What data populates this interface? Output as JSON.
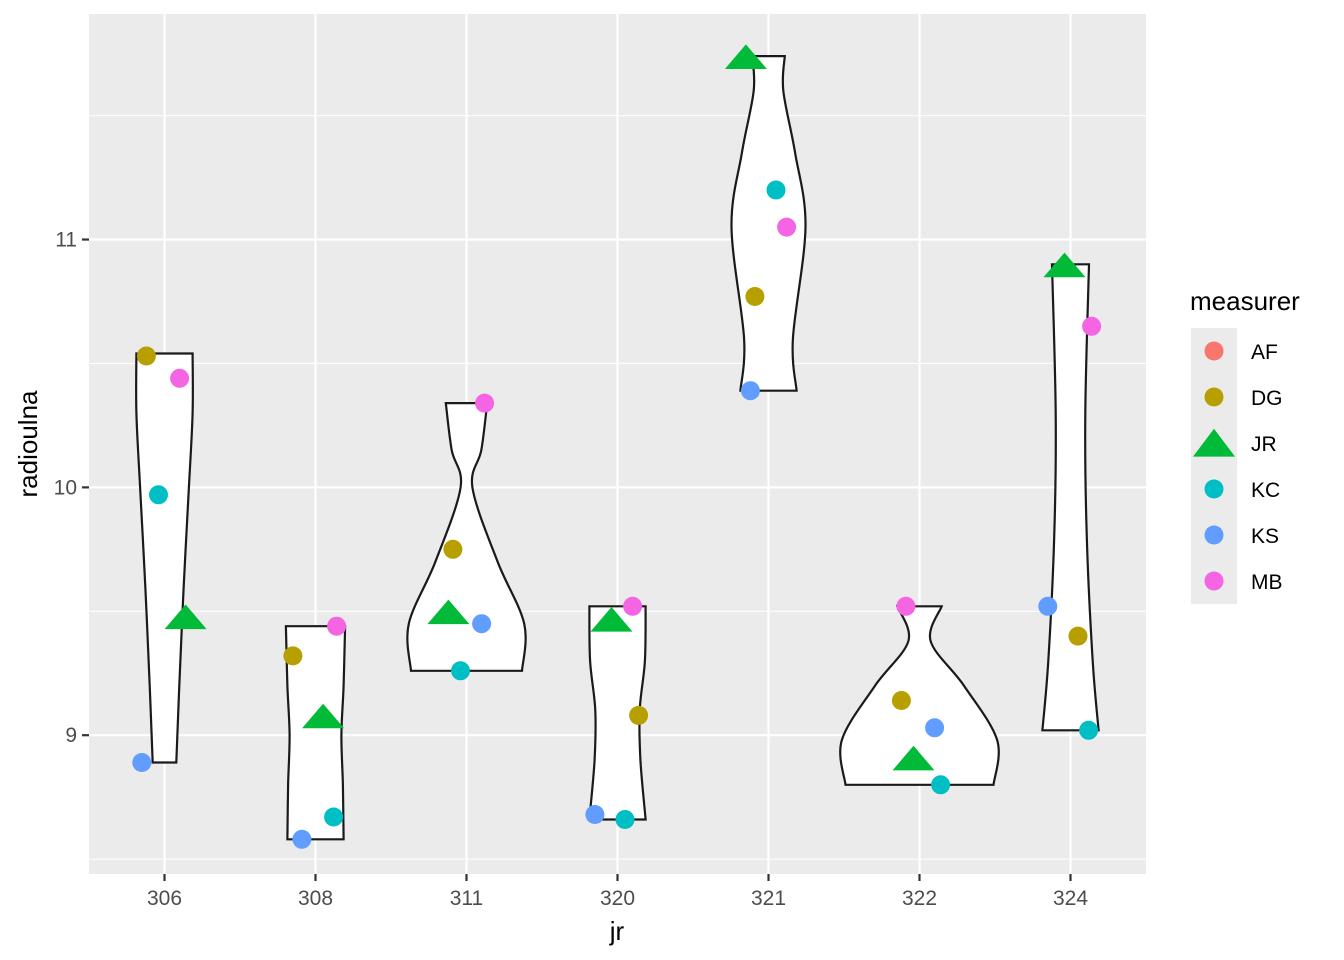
{
  "chart_data": {
    "type": "violin",
    "xlabel": "jr",
    "ylabel": "radioulna",
    "categories": [
      "306",
      "308",
      "311",
      "320",
      "321",
      "322",
      "324"
    ],
    "y_ticks": [
      9,
      10,
      11
    ],
    "y_tick_labels": [
      "9",
      "10",
      "11"
    ],
    "ylim": [
      8.44,
      11.91
    ],
    "grid": true,
    "legend": {
      "title": "measurer",
      "position": "right",
      "entries": [
        {
          "name": "AF",
          "color": "#F8766D",
          "shape": "circle"
        },
        {
          "name": "DG",
          "color": "#B79F00",
          "shape": "circle"
        },
        {
          "name": "JR",
          "color": "#00BA38",
          "shape": "triangle"
        },
        {
          "name": "KC",
          "color": "#00BFC4",
          "shape": "circle"
        },
        {
          "name": "KS",
          "color": "#619CFF",
          "shape": "circle"
        },
        {
          "name": "MB",
          "color": "#F564E3",
          "shape": "circle"
        }
      ]
    },
    "violins": [
      {
        "category": "306",
        "profile": [
          [
            8.89,
            0.16
          ],
          [
            9.2,
            0.2
          ],
          [
            9.6,
            0.26
          ],
          [
            10.0,
            0.33
          ],
          [
            10.3,
            0.38
          ],
          [
            10.54,
            0.38
          ]
        ]
      },
      {
        "category": "308",
        "profile": [
          [
            8.58,
            0.38
          ],
          [
            8.8,
            0.37
          ],
          [
            9.0,
            0.35
          ],
          [
            9.2,
            0.38
          ],
          [
            9.44,
            0.4
          ]
        ]
      },
      {
        "category": "311",
        "profile": [
          [
            9.26,
            0.75
          ],
          [
            9.45,
            0.78
          ],
          [
            9.7,
            0.42
          ],
          [
            10.0,
            0.08
          ],
          [
            10.15,
            0.2
          ],
          [
            10.34,
            0.28
          ]
        ]
      },
      {
        "category": "320",
        "profile": [
          [
            8.66,
            0.38
          ],
          [
            8.9,
            0.31
          ],
          [
            9.1,
            0.3
          ],
          [
            9.3,
            0.37
          ],
          [
            9.52,
            0.38
          ]
        ]
      },
      {
        "category": "321",
        "profile": [
          [
            10.39,
            0.38
          ],
          [
            10.6,
            0.33
          ],
          [
            11.05,
            0.5
          ],
          [
            11.35,
            0.36
          ],
          [
            11.6,
            0.2
          ],
          [
            11.74,
            0.22
          ]
        ]
      },
      {
        "category": "322",
        "profile": [
          [
            8.8,
            1.0
          ],
          [
            8.98,
            1.05
          ],
          [
            9.2,
            0.6
          ],
          [
            9.38,
            0.15
          ],
          [
            9.52,
            0.3
          ]
        ]
      },
      {
        "category": "324",
        "profile": [
          [
            9.02,
            0.38
          ],
          [
            9.3,
            0.3
          ],
          [
            9.8,
            0.22
          ],
          [
            10.3,
            0.2
          ],
          [
            10.9,
            0.25
          ]
        ]
      }
    ],
    "points": [
      {
        "category": "306",
        "measurer": "DG",
        "value": 10.53
      },
      {
        "category": "306",
        "measurer": "MB",
        "value": 10.44
      },
      {
        "category": "306",
        "measurer": "KC",
        "value": 9.97
      },
      {
        "category": "306",
        "measurer": "JR",
        "value": 9.48
      },
      {
        "category": "306",
        "measurer": "KS",
        "value": 8.89
      },
      {
        "category": "308",
        "measurer": "MB",
        "value": 9.44
      },
      {
        "category": "308",
        "measurer": "DG",
        "value": 9.32
      },
      {
        "category": "308",
        "measurer": "JR",
        "value": 9.08
      },
      {
        "category": "308",
        "measurer": "KC",
        "value": 8.67
      },
      {
        "category": "308",
        "measurer": "KS",
        "value": 8.58
      },
      {
        "category": "311",
        "measurer": "MB",
        "value": 10.34
      },
      {
        "category": "311",
        "measurer": "DG",
        "value": 9.75
      },
      {
        "category": "311",
        "measurer": "JR",
        "value": 9.5
      },
      {
        "category": "311",
        "measurer": "KS",
        "value": 9.45
      },
      {
        "category": "311",
        "measurer": "KC",
        "value": 9.26
      },
      {
        "category": "320",
        "measurer": "MB",
        "value": 9.52
      },
      {
        "category": "320",
        "measurer": "JR",
        "value": 9.47
      },
      {
        "category": "320",
        "measurer": "DG",
        "value": 9.08
      },
      {
        "category": "320",
        "measurer": "KS",
        "value": 8.68
      },
      {
        "category": "320",
        "measurer": "KC",
        "value": 8.66
      },
      {
        "category": "321",
        "measurer": "JR",
        "value": 11.74
      },
      {
        "category": "321",
        "measurer": "KC",
        "value": 11.2
      },
      {
        "category": "321",
        "measurer": "MB",
        "value": 11.05
      },
      {
        "category": "321",
        "measurer": "DG",
        "value": 10.77
      },
      {
        "category": "321",
        "measurer": "KS",
        "value": 10.39
      },
      {
        "category": "322",
        "measurer": "MB",
        "value": 9.52
      },
      {
        "category": "322",
        "measurer": "DG",
        "value": 9.14
      },
      {
        "category": "322",
        "measurer": "KS",
        "value": 9.03
      },
      {
        "category": "322",
        "measurer": "JR",
        "value": 8.91
      },
      {
        "category": "322",
        "measurer": "KC",
        "value": 8.8
      },
      {
        "category": "324",
        "measurer": "JR",
        "value": 10.9
      },
      {
        "category": "324",
        "measurer": "MB",
        "value": 10.65
      },
      {
        "category": "324",
        "measurer": "KS",
        "value": 9.52
      },
      {
        "category": "324",
        "measurer": "DG",
        "value": 9.4
      },
      {
        "category": "324",
        "measurer": "KC",
        "value": 9.02
      }
    ]
  }
}
